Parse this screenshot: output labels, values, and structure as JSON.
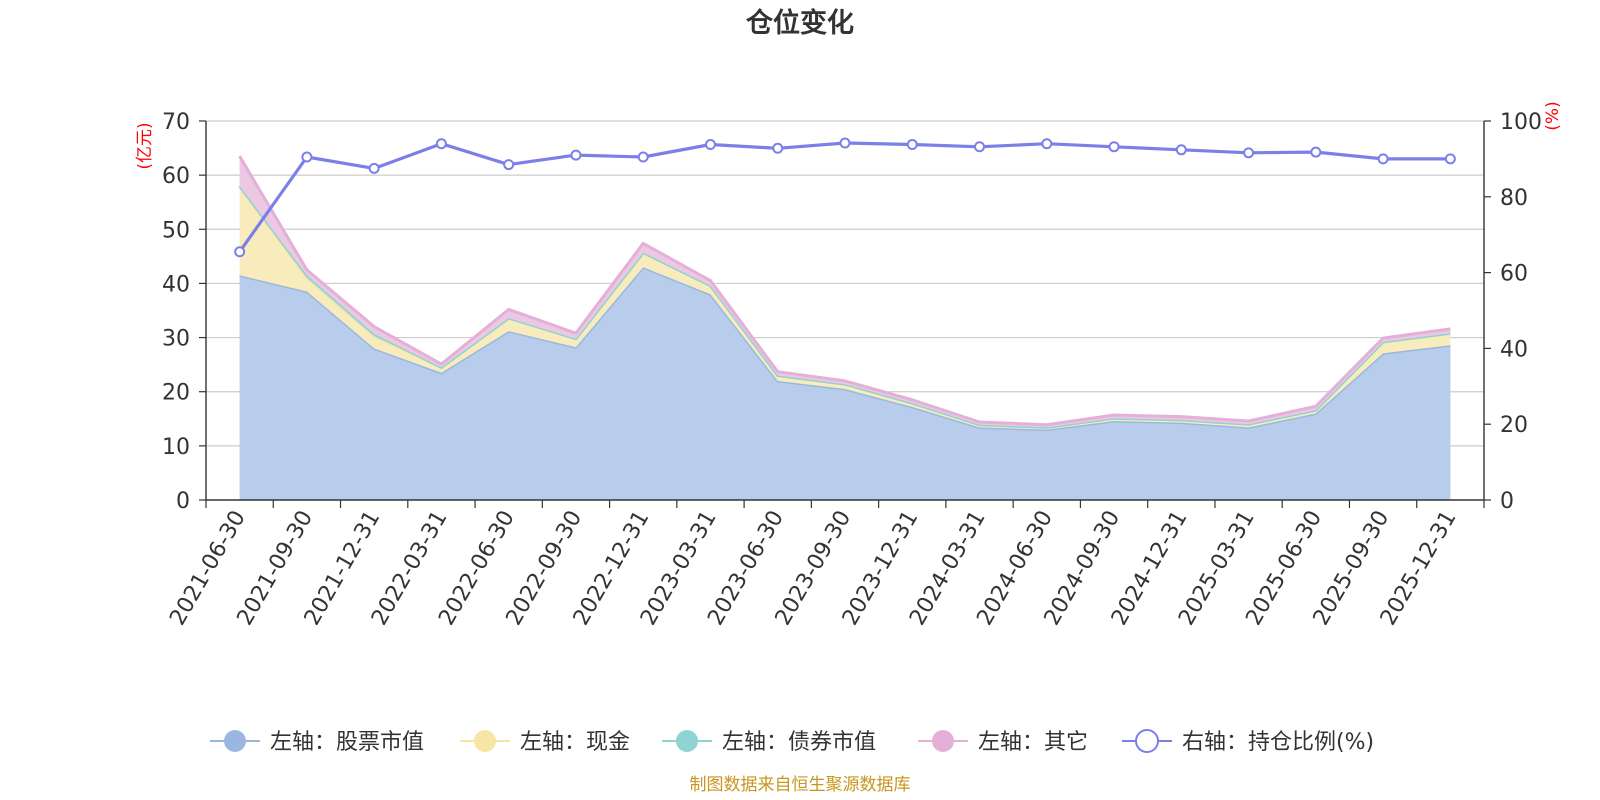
{
  "chart_data": {
    "type": "area",
    "title": "仓位变化",
    "left_unit": "(亿元)",
    "right_unit": "(%)",
    "categories": [
      "2021-06-30",
      "2021-09-30",
      "2021-12-31",
      "2022-03-31",
      "2022-06-30",
      "2022-09-30",
      "2022-12-31",
      "2023-03-31",
      "2023-06-30",
      "2023-09-30",
      "2023-12-31",
      "2024-03-31",
      "2024-06-30",
      "2024-09-30",
      "2024-12-31",
      "2025-03-31",
      "2025-06-30",
      "2025-09-30",
      "2025-12-31"
    ],
    "left_axis": {
      "min": 0,
      "max": 70,
      "ticks": [
        "0",
        "10",
        "20",
        "30",
        "40",
        "50",
        "60",
        "70"
      ]
    },
    "right_axis": {
      "min": 0,
      "max": 100,
      "ticks": [
        "0",
        "20",
        "40",
        "60",
        "80",
        "100"
      ]
    },
    "series": [
      {
        "name": "左轴：股票市值",
        "axis": "left",
        "stack": true,
        "color": "#9bb7e0",
        "fill": "#b8cdeb",
        "values": [
          41.5,
          38.5,
          28.0,
          23.5,
          31.2,
          28.2,
          43.0,
          38.0,
          22.0,
          20.5,
          17.2,
          13.4,
          13.0,
          14.6,
          14.3,
          13.4,
          16.0,
          27.1,
          28.6
        ]
      },
      {
        "name": "左轴：现金",
        "axis": "left",
        "stack": true,
        "color": "#f7e5a6",
        "fill": "#f8ecbd",
        "values": [
          16.5,
          2.5,
          2.2,
          1.0,
          2.4,
          1.6,
          2.7,
          1.6,
          1.0,
          0.9,
          0.7,
          0.5,
          0.4,
          0.5,
          0.5,
          0.6,
          0.6,
          2.1,
          2.2
        ]
      },
      {
        "name": "左轴：债券市值",
        "axis": "left",
        "stack": true,
        "color": "#8fd3d3",
        "fill": "#a9dddd",
        "values": [
          0,
          0.5,
          0.5,
          0,
          0,
          0,
          0,
          0,
          0,
          0,
          0,
          0,
          0,
          0,
          0,
          0,
          0,
          0,
          0
        ]
      },
      {
        "name": "左轴：其它",
        "axis": "left",
        "stack": true,
        "color": "#e4b0d8",
        "fill": "#ecc8e3",
        "values": [
          5.5,
          1.0,
          1.3,
          0.6,
          1.6,
          1.0,
          1.7,
          0.9,
          0.7,
          0.6,
          0.6,
          0.5,
          0.5,
          0.6,
          0.6,
          0.6,
          0.7,
          0.7,
          0.8
        ]
      },
      {
        "name": "右轴：持仓比例(%)",
        "axis": "right",
        "stack": false,
        "color": "#7b80e8",
        "values": [
          65.5,
          90.5,
          87.5,
          94.0,
          88.5,
          91.0,
          90.5,
          93.8,
          92.8,
          94.2,
          93.8,
          93.2,
          94.0,
          93.2,
          92.4,
          91.6,
          91.8,
          90.0,
          90.0
        ]
      }
    ],
    "legend_position": "bottom",
    "grid": true
  },
  "footer": {
    "source": "制图数据来自恒生聚源数据库"
  }
}
